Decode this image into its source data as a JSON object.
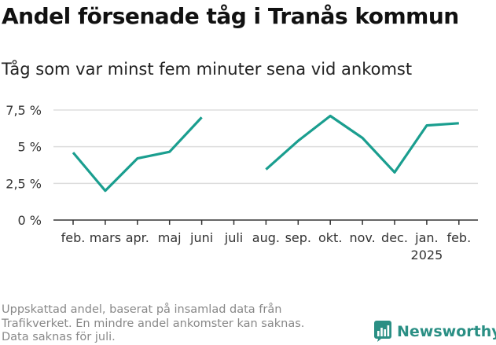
{
  "header": {
    "title": "Andel försenade tåg i Tranås kommun",
    "subtitle": "Tåg som var minst fem minuter sena vid ankomst"
  },
  "footnote": {
    "lines": [
      "Uppskattad andel, baserat på insamlad data från",
      "Trafikverket. En mindre andel ankomster kan saknas.",
      "Data saknas för juli."
    ]
  },
  "brand": {
    "name": "Newsworthy",
    "icon": "newsworthy-logo-icon",
    "color": "#2a8f84"
  },
  "chart_data": {
    "type": "line",
    "title": "Andel försenade tåg i Tranås kommun",
    "subtitle": "Tåg som var minst fem minuter sena vid ankomst",
    "categories": [
      "feb.",
      "mars",
      "apr.",
      "maj",
      "juni",
      "juli",
      "aug.",
      "sep.",
      "okt.",
      "nov.",
      "dec.",
      "jan.",
      "feb."
    ],
    "category_sublabels": [
      "",
      "",
      "",
      "",
      "",
      "",
      "",
      "",
      "",
      "",
      "",
      "2025",
      ""
    ],
    "series": [
      {
        "values": [
          4.6,
          2.0,
          4.2,
          4.65,
          7.0,
          null,
          3.45,
          5.4,
          7.1,
          5.6,
          3.25,
          6.45,
          6.6
        ],
        "color": "#1a9e8f"
      }
    ],
    "ylim": [
      0,
      7.5
    ],
    "yticks": [
      0,
      2.5,
      5,
      7.5
    ],
    "ytick_labels": [
      "0 %",
      "2,5 %",
      "5 %",
      "7,5 %"
    ],
    "xlabel": "",
    "ylabel": "",
    "grid": true,
    "legend": "none",
    "colors": {
      "line": "#1a9e8f",
      "grid": "#dddddd",
      "axis": "#333333",
      "tick_label": "#333333"
    }
  }
}
